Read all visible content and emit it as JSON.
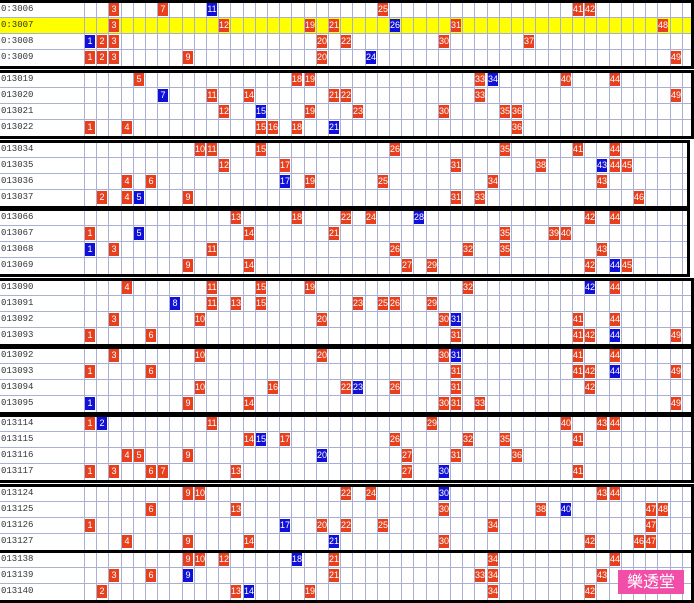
{
  "brand": {
    "label": "樂透堂"
  },
  "colors": {
    "red": "#e8401c",
    "blue": "#1010d8",
    "highlight": "#ffff00",
    "grid": "#a9b0d4",
    "brand": "#f04ea8"
  },
  "groups": [
    {
      "rows": [
        {
          "label": "0:3006",
          "hl": false,
          "r": [
            3,
            7,
            25,
            41,
            42
          ],
          "b": [
            11
          ]
        },
        {
          "label": "0:3007",
          "hl": true,
          "r": [
            3,
            12,
            19,
            21,
            31,
            48
          ],
          "b": [
            26
          ]
        },
        {
          "label": "0:3008",
          "hl": false,
          "r": [
            2,
            3,
            20,
            22,
            30,
            37
          ],
          "b": [
            1
          ]
        },
        {
          "label": "0:3009",
          "hl": false,
          "r": [
            1,
            2,
            3,
            9,
            20,
            49
          ],
          "b": [
            24
          ]
        }
      ]
    },
    {
      "rows": [
        {
          "label": "013019",
          "hl": false,
          "r": [
            5,
            18,
            19,
            33,
            40,
            44
          ],
          "b": [
            34
          ]
        },
        {
          "label": "013020",
          "hl": false,
          "r": [
            11,
            14,
            21,
            22,
            33,
            49
          ],
          "b": [
            7
          ]
        },
        {
          "label": "013021",
          "hl": false,
          "r": [
            12,
            19,
            23,
            30,
            35,
            36
          ],
          "b": [
            15
          ]
        },
        {
          "label": "013022",
          "hl": false,
          "r": [
            1,
            4,
            15,
            16,
            18,
            36
          ],
          "b": [
            21
          ]
        }
      ]
    },
    {
      "rows": [
        {
          "label": "013034",
          "hl": false,
          "r": [
            10,
            11,
            15,
            26,
            35,
            41,
            44
          ]
        },
        {
          "label": "013035",
          "hl": false,
          "r": [
            12,
            17,
            31,
            38,
            44,
            45
          ],
          "b": [
            43
          ]
        },
        {
          "label": "013036",
          "hl": false,
          "r": [
            4,
            6,
            19,
            25,
            34,
            43
          ],
          "b": [
            17
          ]
        },
        {
          "label": "013037",
          "hl": false,
          "r": [
            2,
            4,
            9,
            31,
            33,
            46
          ],
          "b": [
            5
          ]
        }
      ]
    },
    {
      "rows": [
        {
          "label": "013066",
          "hl": false,
          "r": [
            13,
            18,
            22,
            24,
            42,
            44
          ],
          "b": [
            28
          ]
        },
        {
          "label": "013067",
          "hl": false,
          "r": [
            1,
            14,
            21,
            35,
            39,
            40
          ],
          "b": [
            5
          ]
        },
        {
          "label": "013068",
          "hl": false,
          "r": [
            3,
            11,
            26,
            32,
            35,
            43
          ],
          "b": [
            1
          ]
        },
        {
          "label": "013069",
          "hl": false,
          "r": [
            9,
            14,
            27,
            29,
            42,
            45
          ],
          "b": [
            44
          ]
        }
      ]
    },
    {
      "rows": [
        {
          "label": "013090",
          "hl": false,
          "r": [
            4,
            11,
            15,
            19,
            32,
            44
          ],
          "b": [
            42
          ]
        },
        {
          "label": "013091",
          "hl": false,
          "r": [
            11,
            13,
            15,
            23,
            25,
            26,
            29
          ],
          "b": [
            8
          ]
        },
        {
          "label": "013092",
          "hl": false,
          "r": [
            3,
            10,
            20,
            30,
            41,
            44
          ],
          "b": [
            31
          ]
        },
        {
          "label": "013093",
          "hl": false,
          "r": [
            1,
            6,
            31,
            41,
            42,
            49
          ],
          "b": [
            44
          ]
        }
      ]
    },
    {
      "rows": [
        {
          "label": "013092",
          "hl": false,
          "r": [
            3,
            10,
            20,
            30,
            41,
            44
          ],
          "b": [
            31
          ]
        },
        {
          "label": "013093",
          "hl": false,
          "r": [
            1,
            6,
            31,
            41,
            42,
            49
          ],
          "b": [
            44
          ]
        },
        {
          "label": "013094",
          "hl": false,
          "r": [
            10,
            16,
            22,
            26,
            31,
            42
          ],
          "b": [
            23
          ]
        },
        {
          "label": "013095",
          "hl": false,
          "r": [
            9,
            14,
            30,
            31,
            33,
            49
          ],
          "b": [
            1
          ]
        }
      ]
    },
    {
      "rows": [
        {
          "label": "013114",
          "hl": false,
          "r": [
            1,
            11,
            29,
            40,
            43,
            44
          ],
          "b": [
            2
          ]
        },
        {
          "label": "013115",
          "hl": false,
          "r": [
            14,
            17,
            26,
            32,
            35,
            41
          ],
          "b": [
            15
          ]
        },
        {
          "label": "013116",
          "hl": false,
          "r": [
            4,
            5,
            9,
            27,
            31,
            36
          ],
          "b": [
            20
          ]
        },
        {
          "label": "013117",
          "hl": false,
          "r": [
            1,
            3,
            6,
            7,
            13,
            27,
            41
          ],
          "b": [
            30
          ]
        }
      ]
    },
    {
      "rows": [
        {
          "label": "013124",
          "hl": false,
          "r": [
            9,
            10,
            22,
            24,
            43,
            44
          ],
          "b": [
            30
          ]
        },
        {
          "label": "013125",
          "hl": false,
          "r": [
            6,
            13,
            30,
            38,
            47,
            48
          ],
          "b": [
            40
          ]
        },
        {
          "label": "013126",
          "hl": false,
          "r": [
            1,
            20,
            22,
            25,
            34,
            47
          ],
          "b": [
            17
          ]
        },
        {
          "label": "013127",
          "hl": false,
          "r": [
            4,
            9,
            14,
            30,
            42,
            46,
            47
          ],
          "b": [
            21
          ]
        }
      ]
    },
    {
      "rows": [
        {
          "label": "013138",
          "hl": false,
          "r": [
            9,
            10,
            12,
            21,
            34,
            44
          ],
          "b": [
            18
          ]
        },
        {
          "label": "013139",
          "hl": false,
          "r": [
            3,
            6,
            21,
            33,
            34,
            43
          ],
          "b": [
            9
          ]
        },
        {
          "label": "013140",
          "hl": false,
          "r": [
            2,
            13,
            19,
            34,
            42
          ],
          "b": [
            14
          ]
        }
      ]
    }
  ]
}
